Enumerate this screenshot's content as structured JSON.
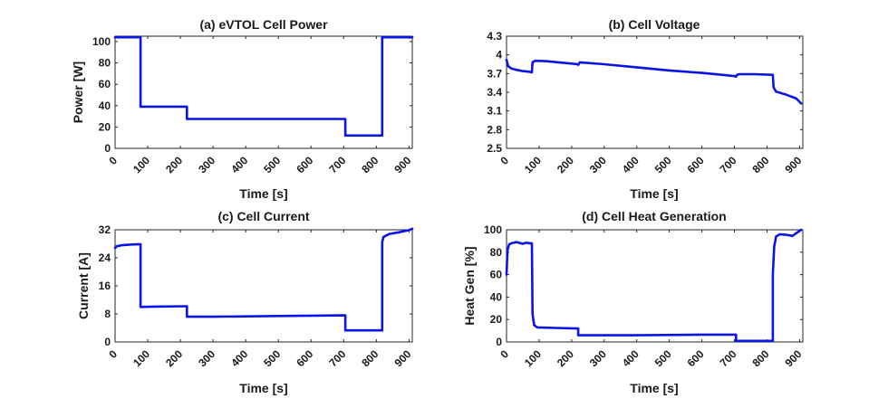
{
  "colors": {
    "line": "#0a14e8",
    "axis": "#262626"
  },
  "chart_data": [
    {
      "id": "a",
      "type": "line",
      "title": "(a) eVTOL Cell Power",
      "xlabel": "Time [s]",
      "ylabel": "Power [W]",
      "xlim": [
        0,
        910
      ],
      "ylim": [
        0,
        105
      ],
      "xticks": [
        0,
        100,
        200,
        300,
        400,
        500,
        600,
        700,
        800,
        900
      ],
      "yticks": [
        0,
        20,
        40,
        60,
        80,
        100
      ],
      "xtick_labels": [
        "0",
        "100",
        "200",
        "300",
        "400",
        "500",
        "600",
        "700",
        "800",
        "900"
      ],
      "ytick_labels": [
        "0",
        "20",
        "40",
        "60",
        "80",
        "100"
      ],
      "series": [
        {
          "name": "Power",
          "x": [
            0,
            78,
            78,
            220,
            220,
            705,
            705,
            818,
            818,
            910
          ],
          "y": [
            104,
            104,
            39,
            39,
            27.5,
            27.5,
            12,
            12,
            104,
            104
          ]
        }
      ]
    },
    {
      "id": "b",
      "type": "line",
      "title": "(b) Cell Voltage",
      "xlabel": "Time [s]",
      "ylabel": "",
      "xlim": [
        0,
        910
      ],
      "ylim": [
        2.5,
        4.3
      ],
      "xticks": [
        0,
        100,
        200,
        300,
        400,
        500,
        600,
        700,
        800,
        900
      ],
      "yticks": [
        2.5,
        2.8,
        3.1,
        3.4,
        3.7,
        4.0,
        4.3
      ],
      "xtick_labels": [
        "0",
        "100",
        "200",
        "300",
        "400",
        "500",
        "600",
        "700",
        "800",
        "900"
      ],
      "ytick_labels": [
        "2.5",
        "2.8",
        "3.1",
        "3.4",
        "3.7",
        "4",
        "4.3"
      ],
      "series": [
        {
          "name": "Voltage",
          "x": [
            0,
            5,
            15,
            30,
            50,
            70,
            78,
            80,
            88,
            120,
            160,
            218,
            220,
            225,
            300,
            400,
            500,
            600,
            700,
            705,
            708,
            715,
            760,
            815,
            818,
            820,
            828,
            860,
            890,
            905
          ],
          "y": [
            3.92,
            3.82,
            3.78,
            3.76,
            3.74,
            3.73,
            3.72,
            3.88,
            3.905,
            3.9,
            3.88,
            3.85,
            3.84,
            3.88,
            3.85,
            3.8,
            3.75,
            3.71,
            3.66,
            3.65,
            3.68,
            3.69,
            3.69,
            3.68,
            3.68,
            3.48,
            3.41,
            3.36,
            3.3,
            3.22
          ]
        }
      ]
    },
    {
      "id": "c",
      "type": "line",
      "title": "(c) Cell Current",
      "xlabel": "Time [s]",
      "ylabel": "Current [A]",
      "xlim": [
        0,
        910
      ],
      "ylim": [
        0,
        32
      ],
      "xticks": [
        0,
        100,
        200,
        300,
        400,
        500,
        600,
        700,
        800,
        900
      ],
      "yticks": [
        0,
        8,
        16,
        24,
        32
      ],
      "xtick_labels": [
        "0",
        "100",
        "200",
        "300",
        "400",
        "500",
        "600",
        "700",
        "800",
        "900"
      ],
      "ytick_labels": [
        "0",
        "8",
        "16",
        "24",
        "32"
      ],
      "series": [
        {
          "name": "Current",
          "x": [
            0,
            5,
            20,
            50,
            78,
            78,
            120,
            220,
            220,
            300,
            500,
            705,
            705,
            818,
            818,
            822,
            840,
            870,
            900,
            910
          ],
          "y": [
            26.8,
            27.3,
            27.6,
            27.8,
            27.9,
            10.0,
            10.1,
            10.2,
            7.2,
            7.2,
            7.4,
            7.6,
            3.3,
            3.3,
            28.5,
            30.0,
            30.8,
            31.3,
            31.9,
            32.3
          ]
        }
      ]
    },
    {
      "id": "d",
      "type": "line",
      "title": "(d) Cell Heat Generation",
      "xlabel": "Time [s]",
      "ylabel": "Heat Gen [%]",
      "xlim": [
        0,
        910
      ],
      "ylim": [
        0,
        100
      ],
      "xticks": [
        0,
        100,
        200,
        300,
        400,
        500,
        600,
        700,
        800,
        900
      ],
      "yticks": [
        0,
        20,
        40,
        60,
        80,
        100
      ],
      "xtick_labels": [
        "0",
        "100",
        "200",
        "300",
        "400",
        "500",
        "600",
        "700",
        "800",
        "900"
      ],
      "ytick_labels": [
        "0",
        "20",
        "40",
        "60",
        "80",
        "100"
      ],
      "series": [
        {
          "name": "Heat Gen",
          "x": [
            0,
            3,
            8,
            15,
            30,
            50,
            60,
            72,
            78,
            80,
            85,
            95,
            150,
            220,
            220,
            400,
            600,
            705,
            705,
            818,
            818,
            822,
            828,
            840,
            860,
            870,
            878,
            890,
            905
          ],
          "y": [
            60,
            82,
            87,
            88,
            89,
            87.5,
            88.5,
            88,
            88,
            25,
            15,
            13,
            12.5,
            12,
            6,
            6,
            6.5,
            6.5,
            1,
            1,
            60,
            85,
            94,
            96,
            95.5,
            95,
            94.5,
            97,
            100
          ]
        }
      ]
    }
  ]
}
